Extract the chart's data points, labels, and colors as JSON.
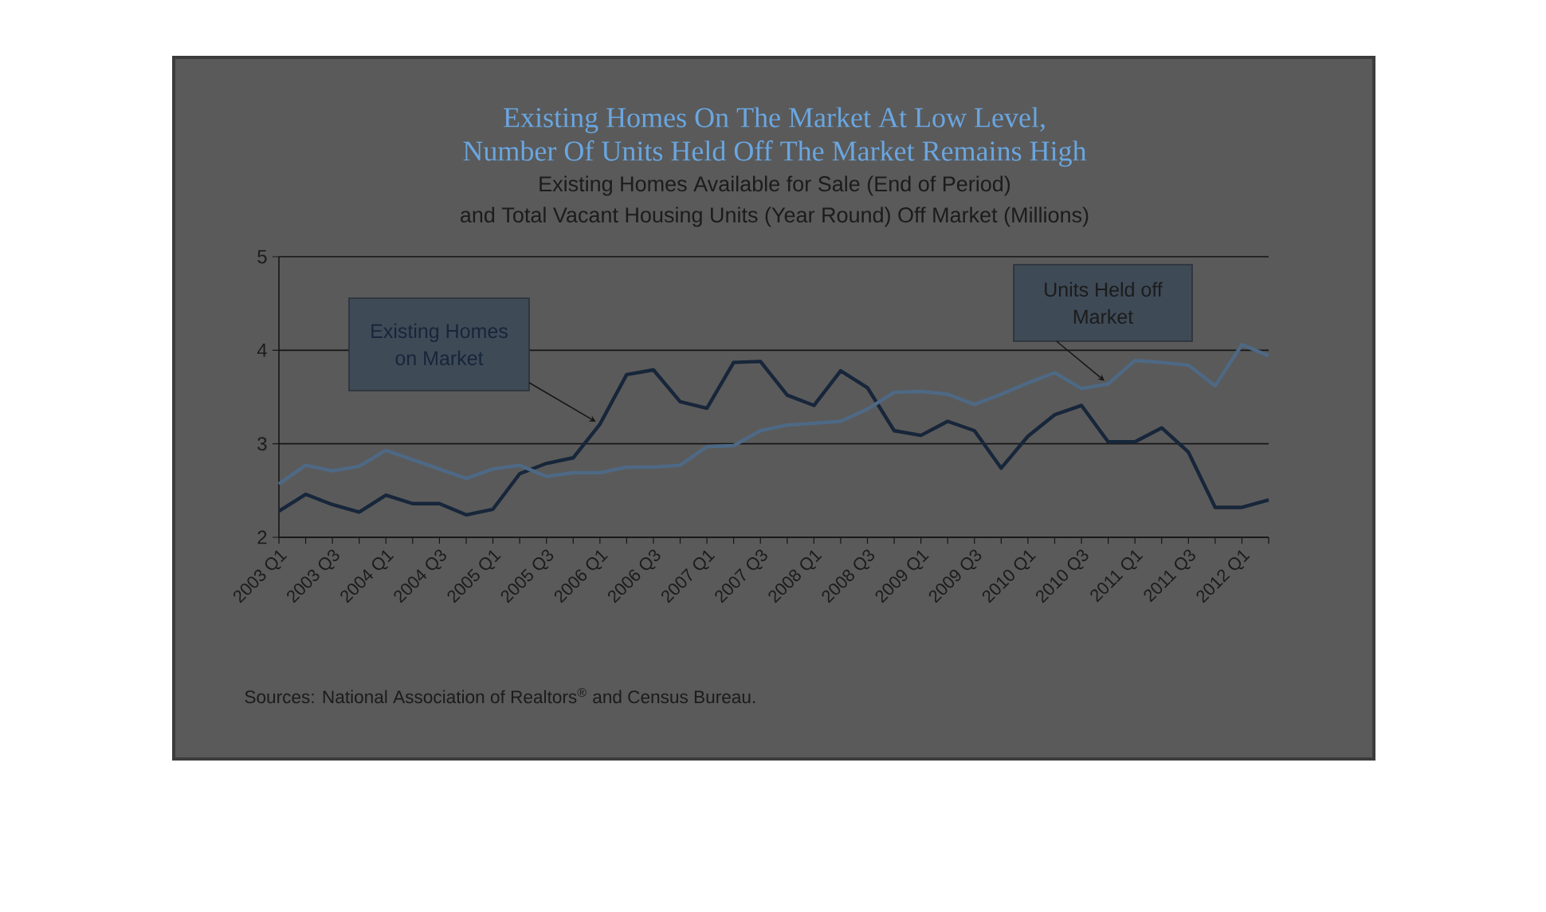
{
  "chart_data": {
    "type": "line",
    "title": "Existing Homes On The Market At Low Level, Number Of Units Held Off The Market Remains High",
    "subtitle": "Existing Homes Available for Sale (End of Period) and Total Vacant Housing Units (Year Round) Off Market (Millions)",
    "categories": [
      "2003 Q1",
      null,
      "2003 Q3",
      null,
      "2004 Q1",
      null,
      "2004 Q3",
      null,
      "2005 Q1",
      null,
      "2005 Q3",
      null,
      "2006 Q1",
      null,
      "2006 Q3",
      null,
      "2007 Q1",
      null,
      "2007 Q3",
      null,
      "2008 Q1",
      null,
      "2008 Q3",
      null,
      "2009 Q1",
      null,
      "2009 Q3",
      null,
      "2010 Q1",
      null,
      "2010 Q3",
      null,
      "2011 Q1",
      null,
      "2011 Q3",
      null,
      "2012 Q1",
      null
    ],
    "series": [
      {
        "name": "Existing Homes on Market",
        "color": "#17263a",
        "values": [
          2.28,
          2.46,
          2.35,
          2.27,
          2.45,
          2.36,
          2.36,
          2.24,
          2.3,
          2.68,
          2.79,
          2.85,
          3.21,
          3.74,
          3.79,
          3.45,
          3.38,
          3.87,
          3.88,
          3.52,
          3.41,
          3.78,
          3.6,
          3.14,
          3.09,
          3.24,
          3.14,
          2.74,
          3.08,
          3.31,
          3.41,
          3.02,
          3.02,
          3.17,
          2.91,
          2.32,
          2.32,
          2.4
        ]
      },
      {
        "name": "Units Held off Market",
        "color": "#4e6985",
        "values": [
          2.57,
          2.77,
          2.71,
          2.76,
          2.93,
          2.83,
          2.73,
          2.63,
          2.73,
          2.77,
          2.65,
          2.69,
          2.69,
          2.75,
          2.75,
          2.77,
          2.97,
          2.98,
          3.14,
          3.2,
          3.22,
          3.24,
          3.37,
          3.55,
          3.56,
          3.53,
          3.42,
          3.53,
          3.65,
          3.76,
          3.59,
          3.64,
          3.89,
          3.87,
          3.84,
          3.62,
          4.06,
          3.94
        ]
      }
    ],
    "ylim": [
      2,
      5
    ],
    "yticks": [
      2,
      3,
      4,
      5
    ],
    "grid": "y",
    "marker": "none",
    "line_style": "solid",
    "annotations": [
      "Sources: National Association of Realtors$^{®}$ and Census Bureau."
    ]
  }
}
